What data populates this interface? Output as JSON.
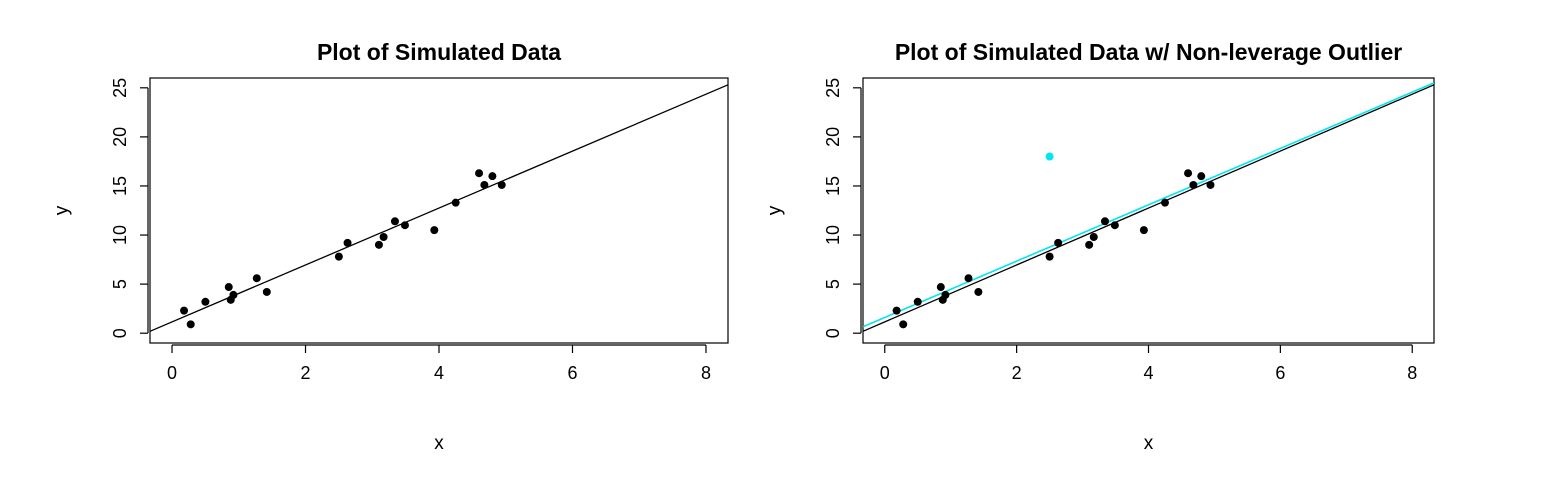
{
  "chart_data": [
    {
      "type": "scatter",
      "title": "Plot of Simulated Data",
      "xlabel": "x",
      "ylabel": "y",
      "xlim": [
        -0.33,
        8.33
      ],
      "ylim": [
        -1.0,
        26.0
      ],
      "xticks": [
        "0",
        "2",
        "4",
        "6",
        "8"
      ],
      "yticks": [
        "0",
        "5",
        "10",
        "15",
        "20",
        "25"
      ],
      "colors": {
        "points": "#000000",
        "fit_line": "#000000"
      },
      "series": [
        {
          "points": [
            {
              "x": 0.18,
              "y": 2.3
            },
            {
              "x": 0.28,
              "y": 0.9
            },
            {
              "x": 0.5,
              "y": 3.2
            },
            {
              "x": 0.85,
              "y": 4.7
            },
            {
              "x": 0.88,
              "y": 3.4
            },
            {
              "x": 0.92,
              "y": 3.9
            },
            {
              "x": 1.27,
              "y": 5.6
            },
            {
              "x": 1.42,
              "y": 4.2
            },
            {
              "x": 2.5,
              "y": 7.8
            },
            {
              "x": 2.63,
              "y": 9.2
            },
            {
              "x": 3.1,
              "y": 9.0
            },
            {
              "x": 3.17,
              "y": 9.8
            },
            {
              "x": 3.34,
              "y": 11.4
            },
            {
              "x": 3.49,
              "y": 11.0
            },
            {
              "x": 3.93,
              "y": 10.5
            },
            {
              "x": 4.25,
              "y": 13.3
            },
            {
              "x": 4.6,
              "y": 16.3
            },
            {
              "x": 4.68,
              "y": 15.1
            },
            {
              "x": 4.8,
              "y": 16.0
            },
            {
              "x": 4.94,
              "y": 15.1
            }
          ]
        }
      ],
      "fit_lines": [
        {
          "intercept": 1.15,
          "slope": 2.9
        }
      ]
    },
    {
      "type": "scatter",
      "title": "Plot of Simulated Data w/ Non-leverage Outlier",
      "xlabel": "x",
      "ylabel": "y",
      "xlim": [
        -0.33,
        8.33
      ],
      "ylim": [
        -1.0,
        26.0
      ],
      "xticks": [
        "0",
        "2",
        "4",
        "6",
        "8"
      ],
      "yticks": [
        "0",
        "5",
        "10",
        "15",
        "20",
        "25"
      ],
      "colors": {
        "points": "#000000",
        "outlier": "#00e5ee",
        "fit_line": "#000000",
        "fit_line_outlier": "#00e5ee"
      },
      "series": [
        {
          "points": [
            {
              "x": 0.18,
              "y": 2.3
            },
            {
              "x": 0.28,
              "y": 0.9
            },
            {
              "x": 0.5,
              "y": 3.2
            },
            {
              "x": 0.85,
              "y": 4.7
            },
            {
              "x": 0.88,
              "y": 3.4
            },
            {
              "x": 0.92,
              "y": 3.9
            },
            {
              "x": 1.27,
              "y": 5.6
            },
            {
              "x": 1.42,
              "y": 4.2
            },
            {
              "x": 2.5,
              "y": 7.8
            },
            {
              "x": 2.63,
              "y": 9.2
            },
            {
              "x": 3.1,
              "y": 9.0
            },
            {
              "x": 3.17,
              "y": 9.8
            },
            {
              "x": 3.34,
              "y": 11.4
            },
            {
              "x": 3.49,
              "y": 11.0
            },
            {
              "x": 3.93,
              "y": 10.5
            },
            {
              "x": 4.25,
              "y": 13.3
            },
            {
              "x": 4.6,
              "y": 16.3
            },
            {
              "x": 4.68,
              "y": 15.1
            },
            {
              "x": 4.8,
              "y": 16.0
            },
            {
              "x": 4.94,
              "y": 15.1
            }
          ]
        },
        {
          "color": "#00e5ee",
          "points": [
            {
              "x": 2.5,
              "y": 18.0
            }
          ]
        }
      ],
      "fit_lines": [
        {
          "intercept": 1.15,
          "slope": 2.9,
          "color": "#000000"
        },
        {
          "intercept": 1.6,
          "slope": 2.87,
          "color": "#00e5ee"
        }
      ]
    }
  ]
}
